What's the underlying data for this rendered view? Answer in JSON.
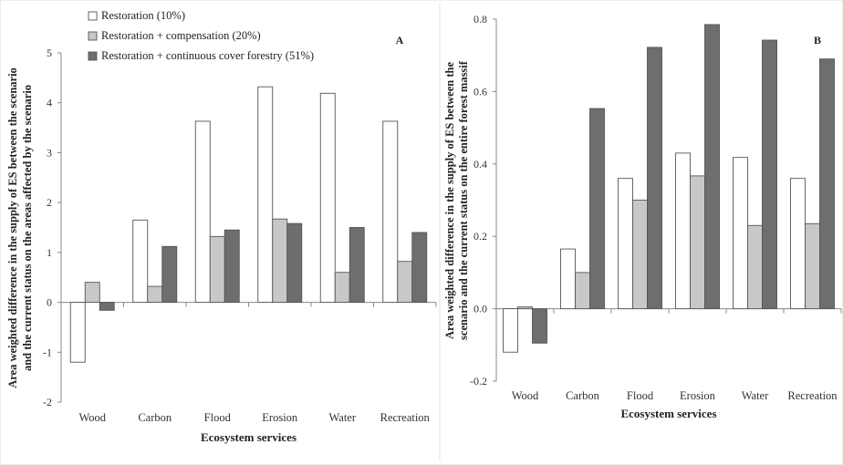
{
  "chart_data": [
    {
      "type": "bar",
      "panel_label": "A",
      "categories": [
        "Wood",
        "Carbon",
        "Flood",
        "Erosion",
        "Water",
        "Recreation"
      ],
      "series": [
        {
          "name": "Restoration (10%)",
          "values": [
            -1.2,
            1.65,
            3.63,
            4.32,
            4.19,
            3.63
          ],
          "color": "#ffffff"
        },
        {
          "name": "Restoration + compensation (20%)",
          "values": [
            0.4,
            0.32,
            1.32,
            1.67,
            0.6,
            0.82
          ],
          "color": "#c8c8c8"
        },
        {
          "name": "Restoration + continuous cover forestry (51%)",
          "values": [
            -0.16,
            1.12,
            1.45,
            1.58,
            1.5,
            1.4
          ],
          "color": "#6e6e6e"
        }
      ],
      "xlabel": "Ecosystem services",
      "ylabel": [
        "Area weighted difference in the supply of ES between the scenario",
        "and the current status on the areas affected by the scenario"
      ],
      "ylim": [
        -2,
        5
      ],
      "yticks": [
        "-2",
        "-1",
        "0",
        "1",
        "2",
        "3",
        "4",
        "5"
      ],
      "legend_position": "top-left",
      "grid": false
    },
    {
      "type": "bar",
      "panel_label": "B",
      "categories": [
        "Wood",
        "Carbon",
        "Flood",
        "Erosion",
        "Water",
        "Recreation"
      ],
      "series": [
        {
          "values": [
            -0.12,
            0.165,
            0.36,
            0.43,
            0.418,
            0.36
          ],
          "color": "#ffffff"
        },
        {
          "values": [
            0.005,
            0.1,
            0.3,
            0.367,
            0.23,
            0.235
          ],
          "color": "#c8c8c8"
        },
        {
          "values": [
            -0.095,
            0.553,
            0.722,
            0.785,
            0.742,
            0.69
          ],
          "color": "#6e6e6e"
        }
      ],
      "xlabel": "Ecosystem services",
      "ylabel": [
        "Area weighted difference in the supply of ES between the",
        "scenario and the current status on the entire forest massif"
      ],
      "ylim": [
        -0.2,
        0.8
      ],
      "yticks": [
        "-0.2",
        "0.0",
        "0.2",
        "0.4",
        "0.6",
        "0.8"
      ],
      "grid": false
    }
  ]
}
